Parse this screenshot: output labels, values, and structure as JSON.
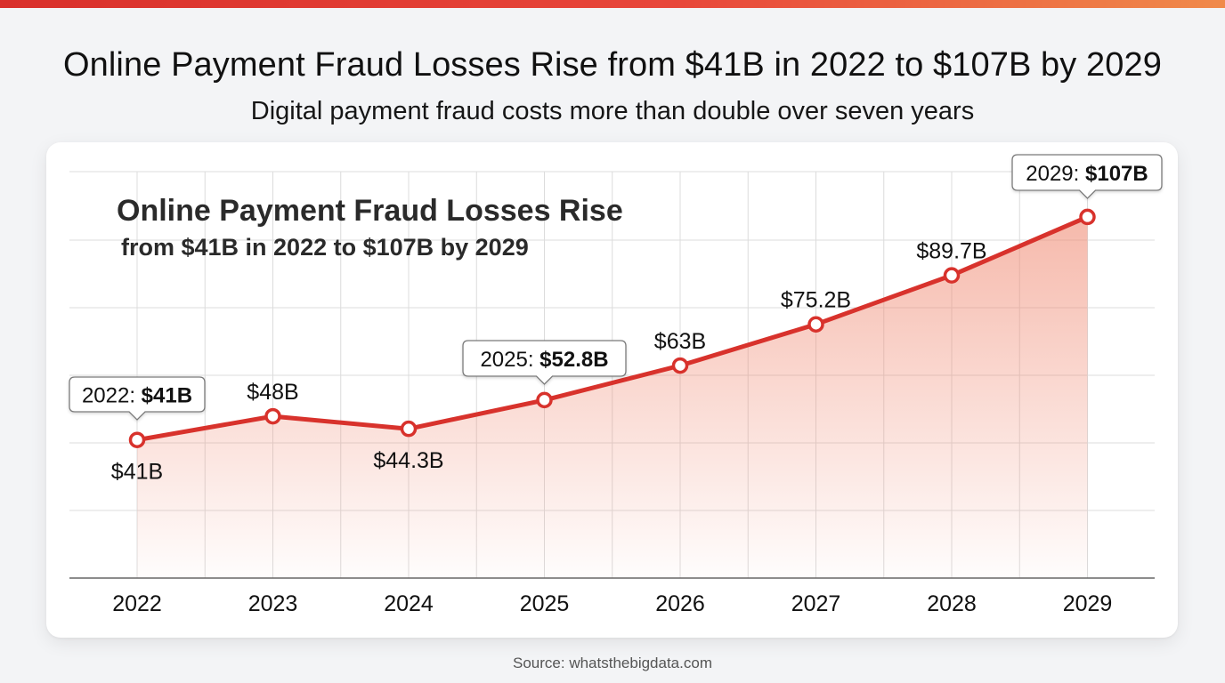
{
  "header": {
    "title": "Online Payment Fraud Losses Rise from $41B in 2022 to $107B by 2029",
    "subtitle": "Digital payment fraud costs more than double over seven years"
  },
  "colors": {
    "line": "#d8322c",
    "area_top": "#f08a73",
    "callout_border": "#7a7a7a",
    "grid": "#dcdcdc"
  },
  "chart_data": {
    "type": "area",
    "inner_title": "Online Payment Fraud Losses Rise",
    "inner_subtitle": "from $41B in 2022 to $107B by 2029",
    "x": [
      "2022",
      "2023",
      "2024",
      "2025",
      "2026",
      "2027",
      "2028",
      "2029"
    ],
    "values": [
      41,
      48,
      44.3,
      52.8,
      63,
      75.2,
      89.7,
      107
    ],
    "data_labels": [
      "$41B",
      "$48B",
      "$44.3B",
      "",
      "$63B",
      "$75.2B",
      "$89.7B",
      ""
    ],
    "callouts": [
      {
        "index": 0,
        "prefix": "2022: ",
        "value": "$41B"
      },
      {
        "index": 3,
        "prefix": "2025: ",
        "value": "$52.8B"
      },
      {
        "index": 7,
        "prefix": "2029: ",
        "value": "$107B"
      }
    ],
    "xlabel": "",
    "ylabel": "",
    "ylim": [
      0,
      120
    ],
    "grid": true,
    "y_tick_labels_shown": false
  },
  "footer": {
    "source": "Source: whatsthebigdata.com"
  }
}
